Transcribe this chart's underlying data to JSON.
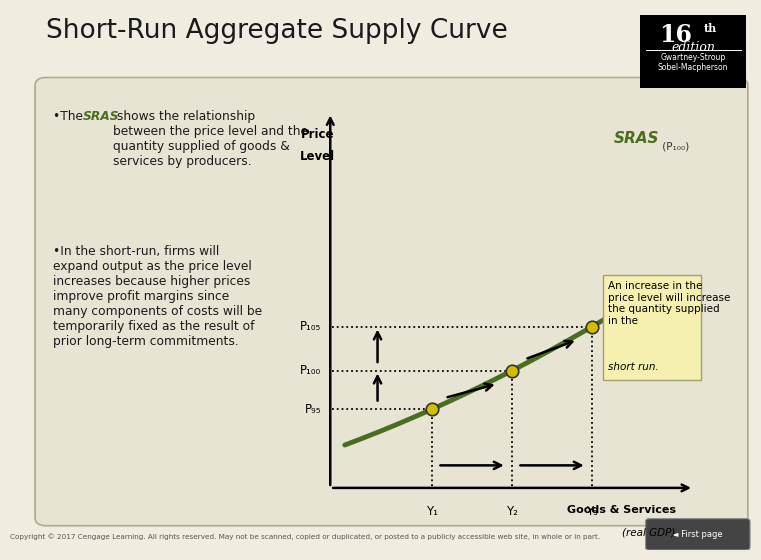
{
  "title": "Short-Run Aggregate Supply Curve",
  "bg_color": "#f0ece0",
  "panel_bg": "#e8e4d4",
  "panel_border": "#b0a890",
  "title_color": "#1a1a1a",
  "curve_color": "#4a6e20",
  "dot_color": "#d4bc00",
  "dot_edge": "#333333",
  "sras_label": "SRAS",
  "sras_sub": " (P₁₀₀)",
  "price_level_label_1": "Price",
  "price_level_label_2": "Level",
  "x_axis_label": "Goods & Services",
  "x_axis_sub": "(real GDP)",
  "p105": "P₁₀₅",
  "p100": "P₁₀₀",
  "p95": "P₉₅",
  "y1": "Y₁",
  "y2": "Y₂",
  "y3": "Y₃",
  "ann_line1": "An increase in the",
  "ann_line2": "price level will increase",
  "ann_line3": "the quantity supplied",
  "ann_line4": "in the ",
  "ann_italic": "short run.",
  "ann_bg": "#f5f0b0",
  "ann_border": "#a0a070",
  "copyright": "Copyright © 2017 Cengage Learning. All rights reserved. May not be scanned, copied or duplicated, or posted to a publicly accessible web site, in whole or in part.",
  "edition_16": "16",
  "edition_th": "th",
  "edition_text": "edition",
  "author1": "Gwartney-Stroup",
  "author2": "Sobel-Macpherson",
  "bullet1a": "•The ",
  "bullet1b": "SRAS",
  "bullet1c": " shows the relationship\nbetween the price level and the\nquantity supplied of goods &\nservices by producers.",
  "bullet2": "•In the short-run, firms will\nexpand output as the price level\nincreases because higher prices\nimprove profit margins since\nmany components of costs will be\ntemporarily fixed as the result of\nprior long-term commitments."
}
